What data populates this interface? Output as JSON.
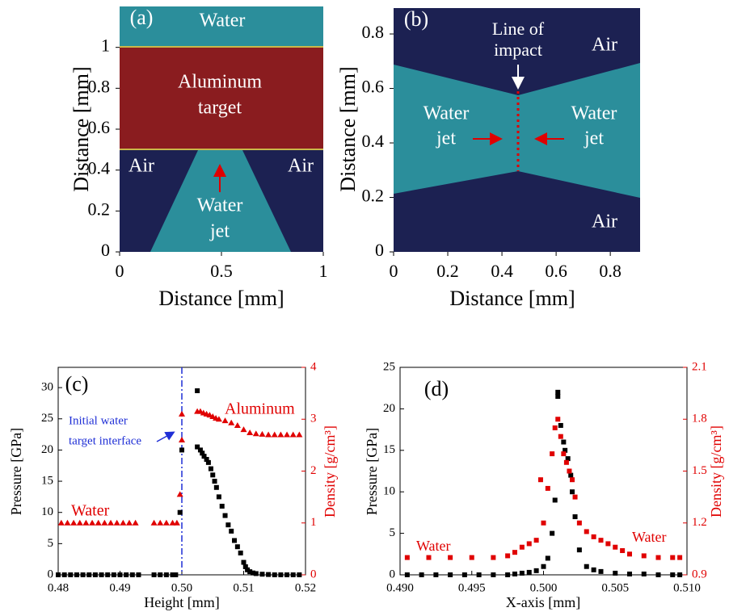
{
  "chart_data": [
    {
      "type": "image",
      "panel": "(a)",
      "xlabel": "Distance [mm]",
      "ylabel": "Distance [mm]",
      "xlim": [
        0,
        1
      ],
      "ylim": [
        0,
        1.2
      ],
      "xticks": [
        0,
        0.5,
        1
      ],
      "yticks": [
        0,
        0.2,
        0.4,
        0.6,
        0.8,
        1
      ],
      "annotations": [
        "Water",
        "Aluminum",
        "target",
        "Air",
        "Air",
        "Water",
        "jet"
      ]
    },
    {
      "type": "image",
      "panel": "(b)",
      "xlabel": "Distance [mm]",
      "ylabel": "Distance [mm]",
      "xlim": [
        0,
        0.91
      ],
      "ylim": [
        0,
        0.895
      ],
      "xticks": [
        0,
        0.2,
        0.4,
        0.6,
        0.8
      ],
      "yticks": [
        0,
        0.2,
        0.4,
        0.6,
        0.8
      ],
      "annotations": [
        "Line of",
        "impact",
        "Air",
        "Water",
        "jet",
        "Water",
        "jet",
        "Air"
      ]
    },
    {
      "type": "scatter",
      "panel": "(c)",
      "xlabel": "Height [mm]",
      "ylabel": "Pressure [GPa]",
      "y2label": "Density [g/cm³]",
      "xlim": [
        0.48,
        0.52
      ],
      "ylim": [
        0,
        33.25
      ],
      "y2lim": [
        0,
        4
      ],
      "xticks": [
        0.48,
        0.49,
        {
          "value": 0.5,
          "label": "0.50"
        },
        0.51,
        0.52
      ],
      "yticks": [
        0,
        5,
        10,
        15,
        20,
        25,
        30
      ],
      "y2ticks": [
        0,
        1,
        2,
        3,
        4
      ],
      "vline": 0.5,
      "vline_color": "#1f2fd6",
      "annotations": [
        "Aluminum",
        "Water",
        "Initial water",
        "target interface"
      ],
      "series": [
        {
          "color": "#000000",
          "marker": "square",
          "x": [
            0.48,
            0.481,
            0.482,
            0.483,
            0.484,
            0.485,
            0.486,
            0.487,
            0.488,
            0.489,
            0.49,
            0.491,
            0.492,
            0.493,
            0.4955,
            0.4965,
            0.4975,
            0.4985,
            0.499,
            0.4997,
            0.5,
            0.5025,
            0.5025,
            0.503,
            0.5033,
            0.5036,
            0.504,
            0.5043,
            0.5047,
            0.505,
            0.5053,
            0.5056,
            0.506,
            0.5065,
            0.507,
            0.5075,
            0.508,
            0.5085,
            0.509,
            0.5095,
            0.51,
            0.5103,
            0.5106,
            0.511,
            0.5115,
            0.512,
            0.513,
            0.514,
            0.515,
            0.516,
            0.517,
            0.518,
            0.519
          ],
          "values": [
            0,
            0,
            0,
            0,
            0,
            0,
            0,
            0,
            0,
            0,
            0,
            0,
            0,
            0,
            0,
            0,
            0,
            0,
            0,
            10,
            20,
            29.5,
            20.5,
            20,
            19.5,
            19,
            18.5,
            18,
            17,
            16,
            15,
            14,
            12.5,
            11,
            9.5,
            8,
            7,
            5.5,
            4.5,
            3.5,
            2,
            1.3,
            0.8,
            0.5,
            0.3,
            0.2,
            0.1,
            0.05,
            0,
            0,
            0,
            0,
            0
          ]
        },
        {
          "color": "#e00000",
          "marker": "triangle",
          "axis": "y2",
          "x": [
            0.4805,
            0.4815,
            0.4825,
            0.4835,
            0.4845,
            0.4855,
            0.4865,
            0.4875,
            0.4885,
            0.4895,
            0.4905,
            0.4915,
            0.4925,
            0.4955,
            0.4965,
            0.4975,
            0.4985,
            0.4992,
            0.4997,
            0.5,
            0.5,
            0.5025,
            0.503,
            0.5035,
            0.504,
            0.5045,
            0.505,
            0.5055,
            0.506,
            0.507,
            0.508,
            0.509,
            0.51,
            0.511,
            0.512,
            0.513,
            0.514,
            0.515,
            0.516,
            0.517,
            0.518,
            0.519
          ],
          "values": [
            1,
            1,
            1,
            1,
            1,
            1,
            1,
            1,
            1,
            1,
            1,
            1,
            1,
            1,
            1,
            1,
            1,
            1,
            1.55,
            2.6,
            3.1,
            3.15,
            3.15,
            3.12,
            3.1,
            3.08,
            3.05,
            3.02,
            3.0,
            2.97,
            2.93,
            2.88,
            2.8,
            2.74,
            2.72,
            2.71,
            2.7,
            2.7,
            2.7,
            2.7,
            2.7,
            2.7
          ]
        }
      ]
    },
    {
      "type": "scatter",
      "panel": "(d)",
      "xlabel": "X-axis [mm]",
      "ylabel": "Pressure [GPa]",
      "y2label": "Density [g/cm³]",
      "xlim": [
        0.49,
        0.51
      ],
      "ylim": [
        0,
        25
      ],
      "y2lim": [
        0.9,
        2.1
      ],
      "xticks": [
        {
          "value": 0.49,
          "label": "0.490"
        },
        0.495,
        {
          "value": 0.5,
          "label": "0.500"
        },
        0.505,
        {
          "value": 0.51,
          "label": "0.510"
        }
      ],
      "yticks": [
        0,
        5,
        10,
        15,
        20,
        25
      ],
      "y2ticks": [
        0.9,
        1.2,
        1.5,
        1.8,
        2.1
      ],
      "annotations": [
        "Water",
        "Water"
      ],
      "series": [
        {
          "color": "#000000",
          "marker": "square",
          "x": [
            0.4905,
            0.4915,
            0.4925,
            0.4935,
            0.4945,
            0.4955,
            0.4965,
            0.4975,
            0.498,
            0.4985,
            0.499,
            0.4995,
            0.5,
            0.5003,
            0.5006,
            0.5008,
            0.501,
            0.501,
            0.5012,
            0.5014,
            0.5015,
            0.5017,
            0.5019,
            0.502,
            0.5022,
            0.5025,
            0.503,
            0.5035,
            0.504,
            0.505,
            0.506,
            0.507,
            0.508,
            0.509,
            0.5095
          ],
          "values": [
            0,
            0,
            0,
            0,
            0,
            0,
            0,
            0,
            0.1,
            0.2,
            0.3,
            0.5,
            1,
            2,
            5,
            9,
            22,
            21.5,
            18,
            16,
            15,
            14,
            12,
            10,
            7,
            3,
            1,
            0.6,
            0.4,
            0.2,
            0.1,
            0.1,
            0,
            0,
            0
          ]
        },
        {
          "color": "#e00000",
          "marker": "square",
          "axis": "y2",
          "x": [
            0.4905,
            0.492,
            0.4935,
            0.495,
            0.4965,
            0.4975,
            0.498,
            0.4985,
            0.499,
            0.4995,
            0.4998,
            0.5,
            0.5003,
            0.5006,
            0.5008,
            0.501,
            0.5012,
            0.5014,
            0.5016,
            0.5018,
            0.502,
            0.5022,
            0.5025,
            0.503,
            0.5035,
            0.504,
            0.5045,
            0.505,
            0.5055,
            0.506,
            0.507,
            0.508,
            0.509,
            0.5095
          ],
          "values": [
            1,
            1,
            1,
            1,
            1,
            1.01,
            1.03,
            1.06,
            1.08,
            1.1,
            1.45,
            1.2,
            1.4,
            1.6,
            1.75,
            1.8,
            1.7,
            1.6,
            1.55,
            1.5,
            1.45,
            1.35,
            1.2,
            1.15,
            1.12,
            1.1,
            1.08,
            1.06,
            1.04,
            1.02,
            1.01,
            1,
            1,
            1
          ]
        }
      ]
    }
  ]
}
